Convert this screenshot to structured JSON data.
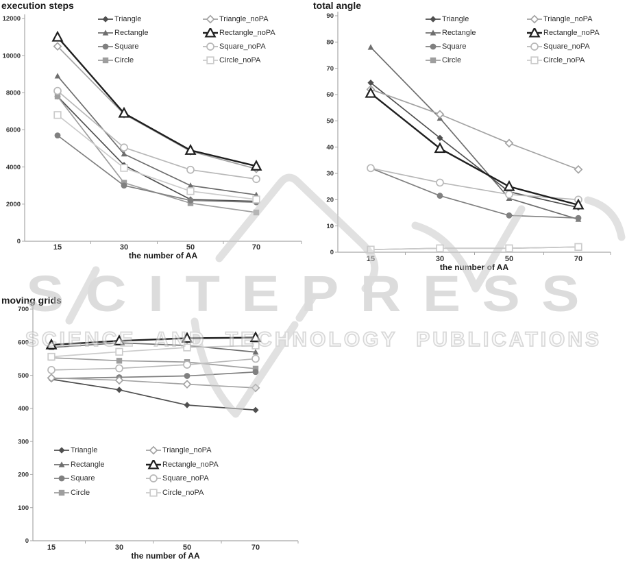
{
  "watermark": {
    "line1": "SCITEPRESS",
    "line2": "SCIENCE AND TECHNOLOGY PUBLICATIONS"
  },
  "colors": {
    "triangle": "#4f4f4f",
    "rectangle": "#6e6e6e",
    "square": "#808080",
    "circle": "#9e9e9e",
    "triangle_nopa": "#a3a3a3",
    "rectangle_nopa": "#1f1f1f",
    "square_nopa": "#b8b8b8",
    "circle_nopa": "#cbcbcb",
    "axis": "#a6a6a6",
    "tick_text": "#333333",
    "watermark_gray": "#c9c9c9"
  },
  "chart_data": [
    {
      "type": "line",
      "title": "execution steps",
      "xlabel": "the number of AA",
      "ylabel": "",
      "categories": [
        "15",
        "30",
        "50",
        "70"
      ],
      "ylim": [
        0,
        12000
      ],
      "ystep": 2000,
      "grid": false,
      "legend_position": "top-inside",
      "series": [
        {
          "name": "Triangle",
          "marker": "diamond",
          "variant": "filled",
          "color": "#4f4f4f",
          "values": [
            7800,
            4100,
            2250,
            2150
          ]
        },
        {
          "name": "Rectangle",
          "marker": "triangle",
          "variant": "filled",
          "color": "#6e6e6e",
          "values": [
            8900,
            4700,
            3000,
            2500
          ]
        },
        {
          "name": "Square",
          "marker": "circle",
          "variant": "filled",
          "color": "#808080",
          "values": [
            5700,
            3000,
            2200,
            2100
          ]
        },
        {
          "name": "Circle",
          "marker": "square",
          "variant": "filled",
          "color": "#9e9e9e",
          "values": [
            7800,
            3150,
            2050,
            1550
          ]
        },
        {
          "name": "Triangle_noPA",
          "marker": "diamond",
          "variant": "open",
          "color": "#a3a3a3",
          "values": [
            10500,
            6850,
            4850,
            3900
          ]
        },
        {
          "name": "Rectangle_noPA",
          "marker": "triangle",
          "variant": "open",
          "color": "#1f1f1f",
          "values": [
            11000,
            6900,
            4900,
            4050
          ]
        },
        {
          "name": "Square_noPA",
          "marker": "circle",
          "variant": "open",
          "color": "#b8b8b8",
          "values": [
            8100,
            5050,
            3850,
            3350
          ]
        },
        {
          "name": "Circle_noPA",
          "marker": "square",
          "variant": "open",
          "color": "#cbcbcb",
          "values": [
            6800,
            3950,
            2700,
            2250
          ]
        }
      ]
    },
    {
      "type": "line",
      "title": "total angle",
      "xlabel": "the number of AA",
      "ylabel": "",
      "categories": [
        "15",
        "30",
        "50",
        "70"
      ],
      "ylim": [
        0,
        90
      ],
      "ystep": 10,
      "grid": false,
      "legend_position": "top-inside",
      "series": [
        {
          "name": "Triangle",
          "marker": "diamond",
          "variant": "filled",
          "color": "#4f4f4f",
          "values": [
            64.5,
            43.5,
            23,
            17
          ]
        },
        {
          "name": "Rectangle",
          "marker": "triangle",
          "variant": "filled",
          "color": "#6e6e6e",
          "values": [
            78,
            51,
            20.5,
            12.5
          ]
        },
        {
          "name": "Square",
          "marker": "circle",
          "variant": "filled",
          "color": "#808080",
          "values": [
            32,
            21.5,
            14,
            13
          ]
        },
        {
          "name": "Circle",
          "marker": "square",
          "variant": "filled",
          "color": "#9e9e9e",
          "values": [
            1,
            1.5,
            1.5,
            2
          ]
        },
        {
          "name": "Triangle_noPA",
          "marker": "diamond",
          "variant": "open",
          "color": "#a3a3a3",
          "values": [
            62,
            52.5,
            41.5,
            31.5
          ]
        },
        {
          "name": "Rectangle_noPA",
          "marker": "triangle",
          "variant": "open",
          "color": "#1f1f1f",
          "values": [
            60.5,
            39.5,
            25,
            18
          ]
        },
        {
          "name": "Square_noPA",
          "marker": "circle",
          "variant": "open",
          "color": "#b8b8b8",
          "values": [
            32,
            26.5,
            22,
            20
          ]
        },
        {
          "name": "Circle_noPA",
          "marker": "square",
          "variant": "open",
          "color": "#cbcbcb",
          "values": [
            1,
            1.5,
            1.5,
            2
          ]
        }
      ]
    },
    {
      "type": "line",
      "title": "moving grids",
      "xlabel": "the number of AA",
      "ylabel": "",
      "categories": [
        "15",
        "30",
        "50",
        "70"
      ],
      "ylim": [
        0,
        700
      ],
      "ystep": 100,
      "grid": false,
      "legend_position": "bottom-inside",
      "series": [
        {
          "name": "Triangle",
          "marker": "diamond",
          "variant": "filled",
          "color": "#4f4f4f",
          "values": [
            488,
            456,
            410,
            395
          ]
        },
        {
          "name": "Rectangle",
          "marker": "triangle",
          "variant": "filled",
          "color": "#6e6e6e",
          "values": [
            584,
            598,
            590,
            570
          ]
        },
        {
          "name": "Square",
          "marker": "circle",
          "variant": "filled",
          "color": "#808080",
          "values": [
            490,
            494,
            498,
            510
          ]
        },
        {
          "name": "Circle",
          "marker": "square",
          "variant": "filled",
          "color": "#9e9e9e",
          "values": [
            553,
            544,
            540,
            520
          ]
        },
        {
          "name": "Triangle_noPA",
          "marker": "diamond",
          "variant": "open",
          "color": "#a3a3a3",
          "values": [
            492,
            485,
            473,
            462
          ]
        },
        {
          "name": "Rectangle_noPA",
          "marker": "triangle",
          "variant": "open",
          "color": "#1f1f1f",
          "values": [
            592,
            604,
            612,
            614
          ]
        },
        {
          "name": "Square_noPA",
          "marker": "circle",
          "variant": "open",
          "color": "#b8b8b8",
          "values": [
            516,
            521,
            532,
            550
          ]
        },
        {
          "name": "Circle_noPA",
          "marker": "square",
          "variant": "open",
          "color": "#cbcbcb",
          "values": [
            556,
            571,
            584,
            590
          ]
        }
      ]
    }
  ]
}
